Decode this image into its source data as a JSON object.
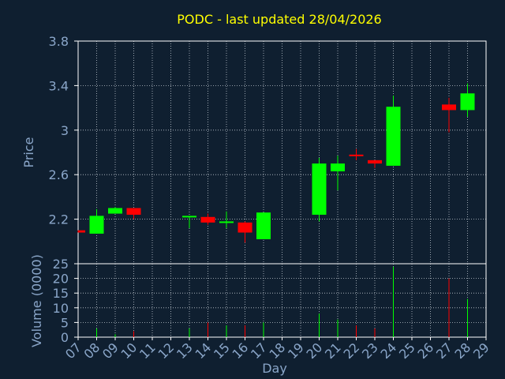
{
  "chart_data": [
    {
      "type": "candlestick",
      "title": "PODC - last updated 28/04/2026",
      "xlabel": "Day",
      "ylabel": "Price",
      "ylim": [
        1.8,
        3.8
      ],
      "yticks": [
        2.2,
        2.6,
        3,
        3.4,
        3.8
      ],
      "ytick_labels": [
        "2.2",
        "2.6",
        "3",
        "3.4",
        "3.8"
      ],
      "categories": [
        "07",
        "08",
        "09",
        "10",
        "11",
        "12",
        "13",
        "14",
        "15",
        "16",
        "17",
        "18",
        "19",
        "20",
        "21",
        "22",
        "23",
        "24",
        "25",
        "26",
        "27",
        "28",
        "29"
      ],
      "grid": true,
      "up_color": "#00ff00",
      "down_color": "#ff0000",
      "candles": [
        {
          "day": "07",
          "open": 2.1,
          "high": 2.1,
          "low": 2.08,
          "close": 2.08
        },
        {
          "day": "08",
          "open": 2.07,
          "high": 2.29,
          "low": 2.07,
          "close": 2.23
        },
        {
          "day": "09",
          "open": 2.25,
          "high": 2.31,
          "low": 2.25,
          "close": 2.3
        },
        {
          "day": "10",
          "open": 2.3,
          "high": 2.3,
          "low": 2.2,
          "close": 2.24
        },
        {
          "day": "13",
          "open": 2.22,
          "high": 2.23,
          "low": 2.12,
          "close": 2.23
        },
        {
          "day": "14",
          "open": 2.22,
          "high": 2.25,
          "low": 2.15,
          "close": 2.17
        },
        {
          "day": "15",
          "open": 2.17,
          "high": 2.27,
          "low": 2.12,
          "close": 2.18
        },
        {
          "day": "16",
          "open": 2.17,
          "high": 2.18,
          "low": 1.99,
          "close": 2.08
        },
        {
          "day": "17",
          "open": 2.02,
          "high": 2.26,
          "low": 2.02,
          "close": 2.26
        },
        {
          "day": "20",
          "open": 2.24,
          "high": 2.75,
          "low": 2.18,
          "close": 2.7
        },
        {
          "day": "21",
          "open": 2.63,
          "high": 2.77,
          "low": 2.46,
          "close": 2.7
        },
        {
          "day": "22",
          "open": 2.78,
          "high": 2.83,
          "low": 2.73,
          "close": 2.77
        },
        {
          "day": "23",
          "open": 2.73,
          "high": 2.73,
          "low": 2.66,
          "close": 2.7
        },
        {
          "day": "24",
          "open": 2.68,
          "high": 3.31,
          "low": 2.68,
          "close": 3.21
        },
        {
          "day": "27",
          "open": 3.23,
          "high": 3.29,
          "low": 2.98,
          "close": 3.18
        },
        {
          "day": "28",
          "open": 3.18,
          "high": 3.42,
          "low": 3.12,
          "close": 3.33
        }
      ]
    },
    {
      "type": "bar",
      "xlabel": "Day",
      "ylabel": "Volume (0000)",
      "ylim": [
        0,
        25
      ],
      "yticks": [
        0,
        5,
        10,
        15,
        20,
        25
      ],
      "ytick_labels": [
        "0",
        "5",
        "10",
        "15",
        "20",
        "25"
      ],
      "categories": [
        "07",
        "08",
        "09",
        "10",
        "11",
        "12",
        "13",
        "14",
        "15",
        "16",
        "17",
        "18",
        "19",
        "20",
        "21",
        "22",
        "23",
        "24",
        "25",
        "26",
        "27",
        "28",
        "29"
      ],
      "grid": true,
      "bars": [
        {
          "day": "08",
          "value": 3,
          "direction": "up"
        },
        {
          "day": "09",
          "value": 1,
          "direction": "up"
        },
        {
          "day": "10",
          "value": 2,
          "direction": "down"
        },
        {
          "day": "13",
          "value": 3,
          "direction": "up"
        },
        {
          "day": "14",
          "value": 5,
          "direction": "down"
        },
        {
          "day": "15",
          "value": 4,
          "direction": "up"
        },
        {
          "day": "16",
          "value": 4,
          "direction": "down"
        },
        {
          "day": "17",
          "value": 5,
          "direction": "up"
        },
        {
          "day": "20",
          "value": 8,
          "direction": "up"
        },
        {
          "day": "21",
          "value": 6,
          "direction": "up"
        },
        {
          "day": "22",
          "value": 4,
          "direction": "down"
        },
        {
          "day": "23",
          "value": 3,
          "direction": "down"
        },
        {
          "day": "24",
          "value": 24,
          "direction": "up"
        },
        {
          "day": "27",
          "value": 20,
          "direction": "down"
        },
        {
          "day": "28",
          "value": 13,
          "direction": "up"
        }
      ]
    }
  ]
}
